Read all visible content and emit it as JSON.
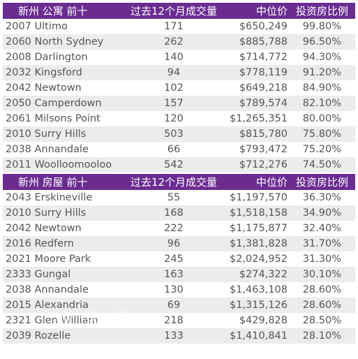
{
  "apartments": {
    "header": {
      "title": "新州 公寓 前十",
      "volume": "过去12个月成交量",
      "median": "中位价",
      "ratio": "投资房比例"
    },
    "rows": [
      {
        "suburb": "2007 Ultimo",
        "volume": "171",
        "median": "$650,249",
        "ratio": "99.80%"
      },
      {
        "suburb": "2060 North Sydney",
        "volume": "262",
        "median": "$885,788",
        "ratio": "96.50%"
      },
      {
        "suburb": "2008 Darlington",
        "volume": "140",
        "median": "$714,772",
        "ratio": "94.30%"
      },
      {
        "suburb": "2032 Kingsford",
        "volume": "94",
        "median": "$778,119",
        "ratio": "91.20%"
      },
      {
        "suburb": "2042 Newtown",
        "volume": "102",
        "median": "$649,218",
        "ratio": "84.90%"
      },
      {
        "suburb": "2050 Camperdown",
        "volume": "157",
        "median": "$789,574",
        "ratio": "82.10%"
      },
      {
        "suburb": "2061 Milsons Point",
        "volume": "120",
        "median": "$1,265,351",
        "ratio": "80.00%"
      },
      {
        "suburb": "2010 Surry Hills",
        "volume": "503",
        "median": "$815,780",
        "ratio": "75.80%"
      },
      {
        "suburb": "2038 Annandale",
        "volume": "66",
        "median": "$793,472",
        "ratio": "75.20%"
      },
      {
        "suburb": "2011 Woolloomooloo",
        "volume": "542",
        "median": "$712,276",
        "ratio": "74.50%"
      }
    ]
  },
  "houses": {
    "header": {
      "title": "新州 房屋 前十",
      "volume": "过去12个月成交量",
      "median": "中位价",
      "ratio": "投资房比例"
    },
    "rows": [
      {
        "suburb": "2043 Erskineville",
        "volume": "55",
        "median": "$1,197,570",
        "ratio": "36.30%"
      },
      {
        "suburb": "2010 Surry Hills",
        "volume": "168",
        "median": "$1,518,158",
        "ratio": "34.90%"
      },
      {
        "suburb": "2042 Newtown",
        "volume": "222",
        "median": "$1,175,877",
        "ratio": "32.40%"
      },
      {
        "suburb": "2016 Redfern",
        "volume": "96",
        "median": "$1,381,828",
        "ratio": "31.70%"
      },
      {
        "suburb": "2021 Moore Park",
        "volume": "245",
        "median": "$2,024,952",
        "ratio": "31.30%"
      },
      {
        "suburb": "2333 Gungal",
        "volume": "163",
        "median": "$274,322",
        "ratio": "30.10%"
      },
      {
        "suburb": "2038 Annandale",
        "volume": "130",
        "median": "$1,463,108",
        "ratio": "28.60%"
      },
      {
        "suburb": "2015 Alexandria",
        "volume": "69",
        "median": "$1,315,126",
        "ratio": "28.60%"
      },
      {
        "suburb": "2321 Glen William",
        "volume": "218",
        "median": "$429,828",
        "ratio": "28.50%"
      },
      {
        "suburb": "2039 Rozelle",
        "volume": "133",
        "median": "$1,410,841",
        "ratio": "28.10%"
      }
    ]
  },
  "watermark": "墟 炎 泊",
  "colors": {
    "header_bg": "#6b2c91",
    "header_text": "#ffffff",
    "row_alt": "#ececec",
    "text": "#555555"
  }
}
